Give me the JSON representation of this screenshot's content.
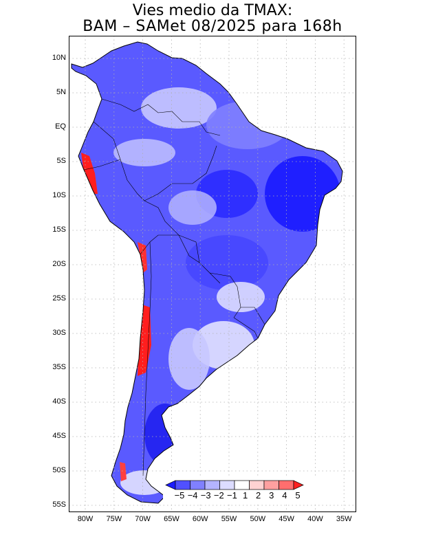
{
  "title": {
    "line1": "Vies medio da TMAX:",
    "line2": "BAM – SAMet 08/2025  para 168h"
  },
  "lat_labels": [
    "10N",
    "5N",
    "EQ",
    "5S",
    "10S",
    "15S",
    "20S",
    "25S",
    "30S",
    "35S",
    "40S",
    "45S",
    "50S",
    "55S"
  ],
  "lon_labels": [
    "80W",
    "75W",
    "70W",
    "65W",
    "60W",
    "55W",
    "50W",
    "45W",
    "40W",
    "35W"
  ],
  "colorbar": {
    "labels": [
      "−5",
      "−4",
      "−3",
      "−2",
      "−1",
      "1",
      "2",
      "3",
      "4",
      "5"
    ],
    "colors": [
      "#1c1cff",
      "#5050ff",
      "#8080ff",
      "#b4b4ff",
      "#dcdcff",
      "#ffffff",
      "#ffd2d2",
      "#ffa0a0",
      "#ff6e6e",
      "#ff2020"
    ]
  },
  "colors": {
    "ocean": "#ffffff",
    "land_base": "#5a5aff",
    "strong_cool": "#2020f0",
    "light_cool": "#c8c8ff",
    "warm": "#ff1e1e",
    "border": "#000000",
    "grid": "#b0b0b0"
  }
}
